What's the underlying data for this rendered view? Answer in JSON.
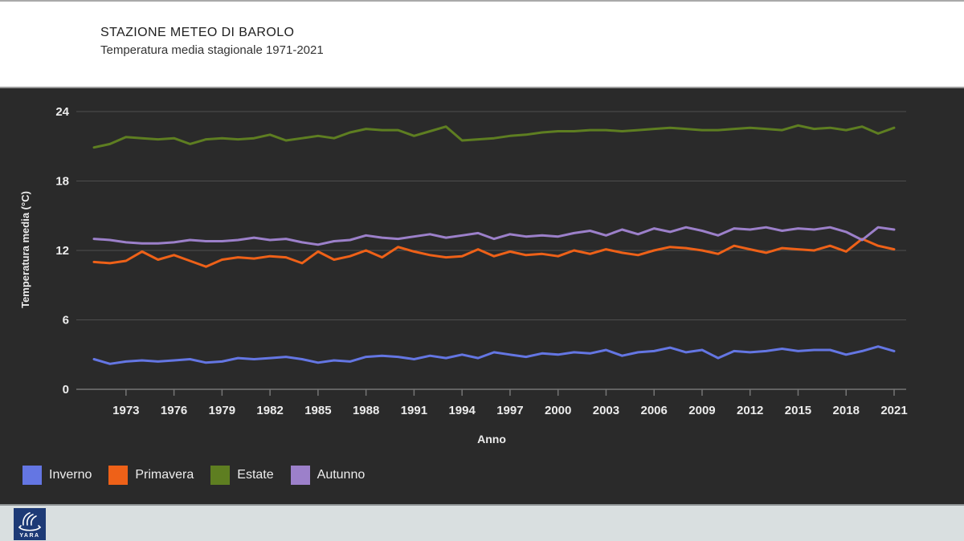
{
  "header": {
    "title": "STAZIONE METEO DI BAROLO",
    "subtitle": "Temperatura media stagionale 1971-2021"
  },
  "chart_data": {
    "type": "line",
    "title": "STAZIONE METEO DI BAROLO",
    "subtitle": "Temperatura media stagionale 1971-2021",
    "xlabel": "Anno",
    "ylabel": "Temperatura media (°C)",
    "x": [
      1971,
      1972,
      1973,
      1974,
      1975,
      1976,
      1977,
      1978,
      1979,
      1980,
      1981,
      1982,
      1983,
      1984,
      1985,
      1986,
      1987,
      1988,
      1989,
      1990,
      1991,
      1992,
      1993,
      1994,
      1995,
      1996,
      1997,
      1998,
      1999,
      2000,
      2001,
      2002,
      2003,
      2004,
      2005,
      2006,
      2007,
      2008,
      2009,
      2010,
      2011,
      2012,
      2013,
      2014,
      2015,
      2016,
      2017,
      2018,
      2019,
      2020,
      2021
    ],
    "x_tick_labels": [
      1973,
      1976,
      1979,
      1982,
      1985,
      1988,
      1991,
      1994,
      1997,
      2000,
      2003,
      2006,
      2009,
      2012,
      2015,
      2018,
      2021
    ],
    "yticks": [
      0,
      6,
      12,
      18,
      24
    ],
    "ylim": [
      0,
      24
    ],
    "grid": true,
    "legend_position": "bottom-left",
    "series": [
      {
        "name": "Inverno",
        "color": "#6476e3",
        "values": [
          2.6,
          2.2,
          2.4,
          2.5,
          2.4,
          2.5,
          2.6,
          2.3,
          2.4,
          2.7,
          2.6,
          2.7,
          2.8,
          2.6,
          2.3,
          2.5,
          2.4,
          2.8,
          2.9,
          2.8,
          2.6,
          2.9,
          2.7,
          3.0,
          2.7,
          3.2,
          3.0,
          2.8,
          3.1,
          3.0,
          3.2,
          3.1,
          3.4,
          2.9,
          3.2,
          3.3,
          3.6,
          3.2,
          3.4,
          2.7,
          3.3,
          3.2,
          3.3,
          3.5,
          3.3,
          3.4,
          3.4,
          3.0,
          3.3,
          3.7,
          3.3
        ]
      },
      {
        "name": "Primavera",
        "color": "#ee6118",
        "values": [
          11.0,
          10.9,
          11.1,
          11.9,
          11.2,
          11.6,
          11.1,
          10.6,
          11.2,
          11.4,
          11.3,
          11.5,
          11.4,
          10.9,
          11.9,
          11.2,
          11.5,
          12.0,
          11.4,
          12.3,
          11.9,
          11.6,
          11.4,
          11.5,
          12.1,
          11.5,
          11.9,
          11.6,
          11.7,
          11.5,
          12.0,
          11.7,
          12.1,
          11.8,
          11.6,
          12.0,
          12.3,
          12.2,
          12.0,
          11.7,
          12.4,
          12.1,
          11.8,
          12.2,
          12.1,
          12.0,
          12.4,
          11.9,
          13.0,
          12.4,
          12.1
        ]
      },
      {
        "name": "Estate",
        "color": "#5e7e21",
        "values": [
          20.9,
          21.2,
          21.8,
          21.7,
          21.6,
          21.7,
          21.2,
          21.6,
          21.7,
          21.6,
          21.7,
          22.0,
          21.5,
          21.7,
          21.9,
          21.7,
          22.2,
          22.5,
          22.4,
          22.4,
          21.9,
          22.3,
          22.7,
          21.5,
          21.6,
          21.7,
          21.9,
          22.0,
          22.2,
          22.3,
          22.3,
          22.4,
          22.4,
          22.3,
          22.4,
          22.5,
          22.6,
          22.5,
          22.4,
          22.4,
          22.5,
          22.6,
          22.5,
          22.4,
          22.8,
          22.5,
          22.6,
          22.4,
          22.7,
          22.1,
          22.6
        ]
      },
      {
        "name": "Autunno",
        "color": "#9c80ca",
        "values": [
          13.0,
          12.9,
          12.7,
          12.6,
          12.6,
          12.7,
          12.9,
          12.8,
          12.8,
          12.9,
          13.1,
          12.9,
          13.0,
          12.7,
          12.5,
          12.8,
          12.9,
          13.3,
          13.1,
          13.0,
          13.2,
          13.4,
          13.1,
          13.3,
          13.5,
          13.0,
          13.4,
          13.2,
          13.3,
          13.2,
          13.5,
          13.7,
          13.3,
          13.8,
          13.4,
          13.9,
          13.6,
          14.0,
          13.7,
          13.3,
          13.9,
          13.8,
          14.0,
          13.7,
          13.9,
          13.8,
          14.0,
          13.6,
          12.9,
          14.0,
          13.8
        ]
      }
    ]
  },
  "footer": {
    "logo_text": "YARA"
  },
  "colors": {
    "background": "#2a2a2a",
    "header_bg": "#ffffff",
    "footer_bg": "#d9dfe0",
    "logo_bg": "#1d3a76",
    "gridline": "#4d4d4d",
    "chart_text": "#ececec"
  }
}
